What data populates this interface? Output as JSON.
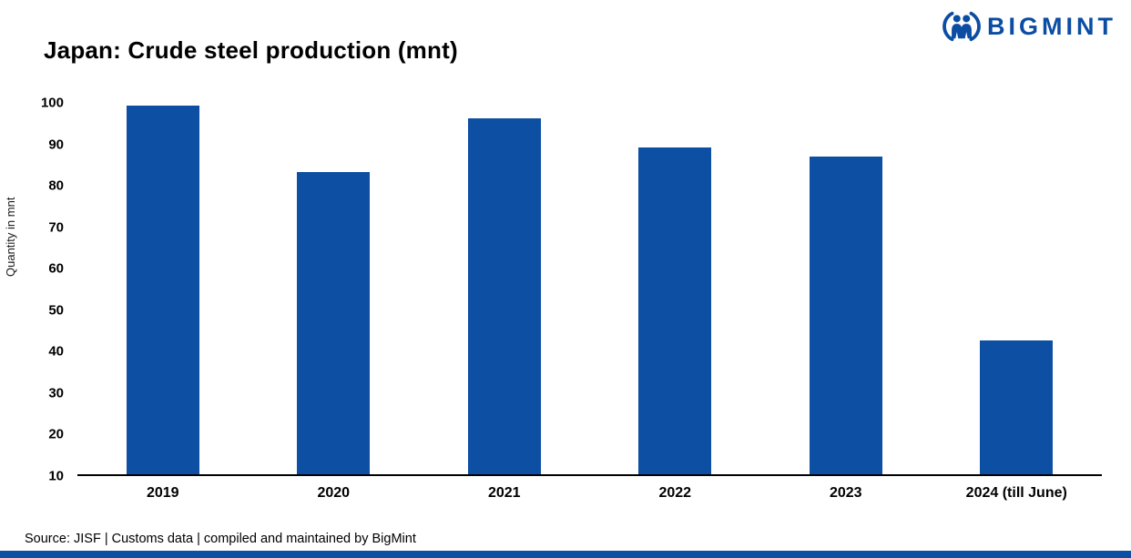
{
  "header": {
    "title": "Japan: Crude steel production (mnt)",
    "brand": "BIGMINT"
  },
  "chart_data": {
    "type": "bar",
    "title": "Japan: Crude steel production (mnt)",
    "categories": [
      "2019",
      "2020",
      "2021",
      "2022",
      "2023",
      "2024 (till June)"
    ],
    "values": [
      99.3,
      83.3,
      96.3,
      89.2,
      87.0,
      42.5
    ],
    "xlabel": "",
    "ylabel": "Quantity in mnt",
    "ylim": [
      10,
      100
    ],
    "ytick_step": 10,
    "grid": false,
    "legend": false,
    "bar_color": "#0d4fa3"
  },
  "footer": {
    "source": "Source: JISF | Customs data | compiled and maintained by BigMint"
  },
  "colors": {
    "accent": "#0d4fa3",
    "brand_blue": "#0a4da2"
  }
}
